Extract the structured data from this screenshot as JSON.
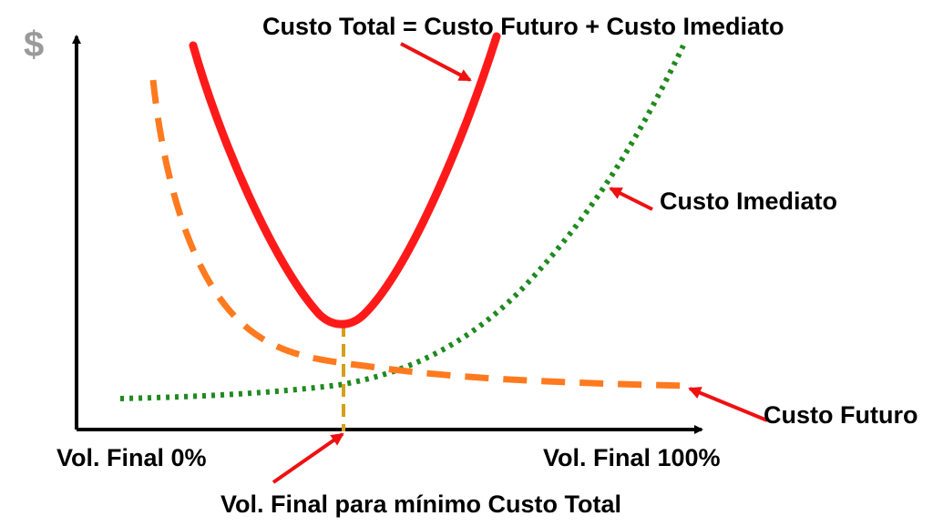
{
  "labels": {
    "y_axis_symbol": "$",
    "total_cost": "Custo Total = Custo Futuro + Custo Imediato",
    "immediate_cost": "Custo Imediato",
    "future_cost": "Custo Futuro",
    "x_start": "Vol. Final 0%",
    "x_end": "Vol. Final 100%",
    "optimum": "Vol. Final para mínimo Custo Total"
  },
  "colors": {
    "axis": "#000000",
    "total_cost": "#ff1a1a",
    "future_cost": "#ff7a1f",
    "immediate_cost": "#1f8a1f",
    "optimum_marker": "#d4a01a",
    "arrow": "#ee1111",
    "dollar": "#9a9a9a"
  }
}
